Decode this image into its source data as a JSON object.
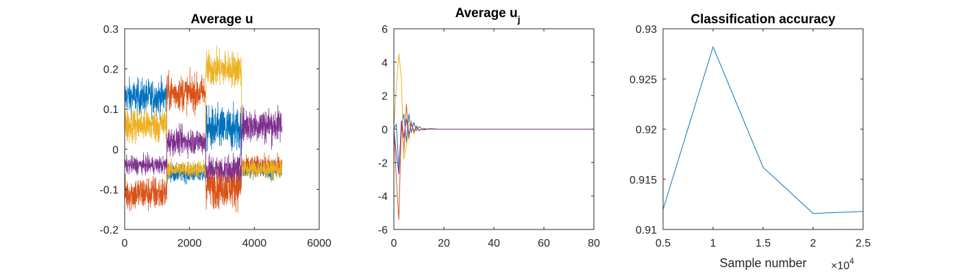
{
  "chart_data": [
    {
      "type": "line",
      "title": "Average u",
      "xlabel": "",
      "ylabel": "",
      "xlim": [
        0,
        6000
      ],
      "ylim": [
        -0.2,
        0.3
      ],
      "xticks": [
        0,
        2000,
        4000,
        6000
      ],
      "yticks": [
        -0.2,
        -0.1,
        0,
        0.1,
        0.2,
        0.3
      ],
      "xtick_labels": [
        "0",
        "2000",
        "4000",
        "6000"
      ],
      "ytick_labels": [
        "-0.2",
        "-0.1",
        "0",
        "0.1",
        "0.2",
        "0.3"
      ],
      "grid": false,
      "note": "noisy traces for 4 series; per-segment mean levels and noise amplitudes",
      "series": [
        {
          "color": "#0072BD",
          "segments": [
            {
              "x": [
                0,
                1300
              ],
              "mean": 0.13,
              "noise": 0.04
            },
            {
              "x": [
                1300,
                2500
              ],
              "mean": -0.06,
              "noise": 0.02
            },
            {
              "x": [
                2500,
                3600
              ],
              "mean": 0.05,
              "noise": 0.05
            },
            {
              "x": [
                3600,
                4850
              ],
              "mean": -0.05,
              "noise": 0.02
            }
          ]
        },
        {
          "color": "#D95319",
          "segments": [
            {
              "x": [
                0,
                1300
              ],
              "mean": -0.11,
              "noise": 0.04
            },
            {
              "x": [
                1300,
                2500
              ],
              "mean": 0.14,
              "noise": 0.04
            },
            {
              "x": [
                2500,
                3600
              ],
              "mean": -0.09,
              "noise": 0.05
            },
            {
              "x": [
                3600,
                4850
              ],
              "mean": -0.04,
              "noise": 0.02
            }
          ]
        },
        {
          "color": "#EDB120",
          "segments": [
            {
              "x": [
                0,
                1300
              ],
              "mean": 0.06,
              "noise": 0.04
            },
            {
              "x": [
                1300,
                2500
              ],
              "mean": -0.05,
              "noise": 0.02
            },
            {
              "x": [
                2500,
                3600
              ],
              "mean": 0.2,
              "noise": 0.04
            },
            {
              "x": [
                3600,
                4850
              ],
              "mean": -0.05,
              "noise": 0.02
            }
          ]
        },
        {
          "color": "#7E2F8E",
          "segments": [
            {
              "x": [
                0,
                1300
              ],
              "mean": -0.04,
              "noise": 0.02
            },
            {
              "x": [
                1300,
                2500
              ],
              "mean": 0.02,
              "noise": 0.03
            },
            {
              "x": [
                2500,
                3600
              ],
              "mean": -0.05,
              "noise": 0.03
            },
            {
              "x": [
                3600,
                4850
              ],
              "mean": 0.06,
              "noise": 0.04
            }
          ]
        }
      ]
    },
    {
      "type": "line",
      "title": "Average u",
      "title_subscript": "j",
      "xlabel": "",
      "ylabel": "",
      "xlim": [
        0,
        80
      ],
      "ylim": [
        -6,
        6
      ],
      "xticks": [
        0,
        20,
        40,
        60,
        80
      ],
      "yticks": [
        -6,
        -4,
        -2,
        0,
        2,
        4,
        6
      ],
      "xtick_labels": [
        "0",
        "20",
        "40",
        "60",
        "80"
      ],
      "ytick_labels": [
        "-6",
        "-4",
        "-2",
        "0",
        "2",
        "4",
        "6"
      ],
      "grid": false,
      "series": [
        {
          "color": "#0072BD",
          "x": [
            0,
            1,
            2,
            3,
            4,
            5,
            6,
            7,
            8,
            9,
            10,
            12,
            14,
            18,
            25,
            40,
            60,
            80
          ],
          "y": [
            0,
            0.3,
            -2.4,
            0.2,
            0.9,
            -0.8,
            0.9,
            -0.2,
            0.4,
            -0.1,
            0.15,
            -0.05,
            0.03,
            0,
            0,
            0,
            0,
            0
          ]
        },
        {
          "color": "#D95319",
          "x": [
            0,
            1,
            2,
            3,
            4,
            5,
            6,
            7,
            8,
            9,
            10,
            12,
            14,
            18,
            25,
            40,
            60,
            80
          ],
          "y": [
            0,
            -3.0,
            -5.4,
            0.4,
            -1.4,
            1.5,
            -0.6,
            0.5,
            -0.2,
            0.2,
            -0.1,
            0.05,
            0,
            0,
            0,
            0,
            0,
            0
          ]
        },
        {
          "color": "#EDB120",
          "x": [
            0,
            1,
            2,
            3,
            4,
            5,
            6,
            7,
            8,
            9,
            10,
            12,
            14,
            18,
            25,
            40,
            60,
            80
          ],
          "y": [
            0,
            2.5,
            4.5,
            3.0,
            -1.8,
            -1.0,
            0.2,
            0.5,
            -0.3,
            0.1,
            -0.1,
            0.05,
            0,
            0,
            0,
            0,
            0,
            0
          ]
        },
        {
          "color": "#7E2F8E",
          "x": [
            0,
            1,
            2,
            3,
            4,
            5,
            6,
            7,
            8,
            9,
            10,
            12,
            14,
            18,
            25,
            40,
            60,
            80
          ],
          "y": [
            0,
            -1.5,
            -2.7,
            0.5,
            -0.5,
            0.6,
            -0.3,
            0.3,
            -0.1,
            0.1,
            -0.05,
            0,
            0,
            0,
            0,
            0,
            0,
            0
          ]
        }
      ]
    },
    {
      "type": "line",
      "title": "Classification accuracy",
      "xlabel": "Sample number",
      "ylabel": "",
      "xlim": [
        0.5,
        2.5
      ],
      "ylim": [
        0.91,
        0.93
      ],
      "xticks": [
        0.5,
        1,
        1.5,
        2,
        2.5
      ],
      "yticks": [
        0.91,
        0.915,
        0.92,
        0.925,
        0.93
      ],
      "xtick_labels": [
        "0.5",
        "1",
        "1.5",
        "2",
        "2.5"
      ],
      "ytick_labels": [
        "0.91",
        "0.915",
        "0.92",
        "0.925",
        "0.93"
      ],
      "x_exponent_base": "×10",
      "x_exponent_power": "4",
      "grid": false,
      "series": [
        {
          "color": "#0072BD",
          "x": [
            0.5,
            1,
            1.5,
            2,
            2.5
          ],
          "y": [
            0.912,
            0.9282,
            0.9162,
            0.9116,
            0.9118
          ]
        }
      ]
    }
  ]
}
